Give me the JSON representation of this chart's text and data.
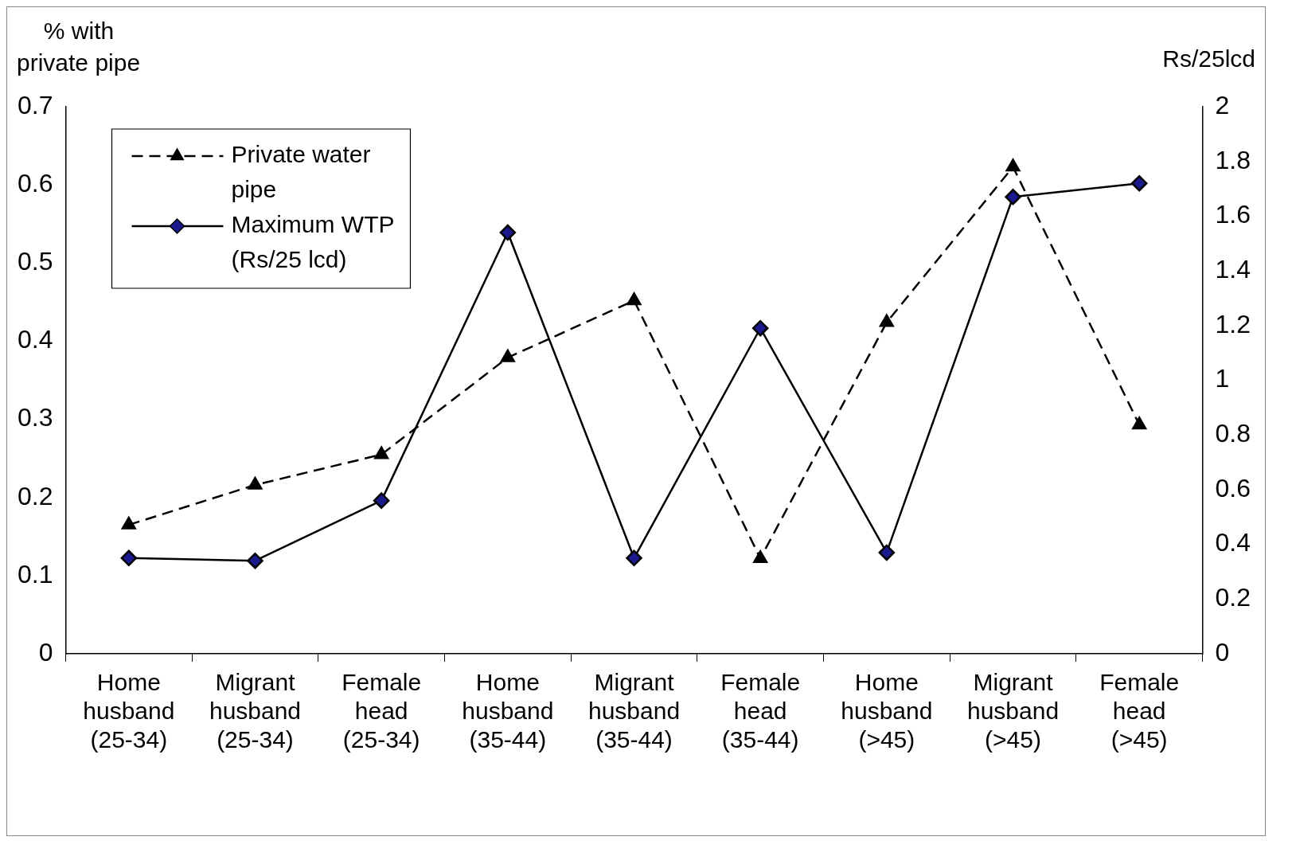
{
  "chart_data": {
    "type": "line",
    "ylabel": "% with private pipe",
    "y2label": "Rs/25lcd",
    "categories": [
      "Home husband (25-34)",
      "Migrant husband (25-34)",
      "Female head (25-34)",
      "Home husband (35-44)",
      "Migrant husband (35-44)",
      "Female head (35-44)",
      "Home husband (>45)",
      "Migrant husband (>45)",
      "Female head (>45)"
    ],
    "series": [
      {
        "name": "Private water pipe",
        "color": "#000000",
        "marker": "triangle",
        "line_style": "dashed",
        "axis": "y",
        "values": [
          0.165,
          0.216,
          0.255,
          0.379,
          0.452,
          0.122,
          0.424,
          0.623,
          0.293
        ]
      },
      {
        "name": "Maximum WTP (Rs/25 lcd)",
        "color": "#000000",
        "marker": "diamond",
        "line_style": "solid",
        "axis": "y2",
        "values": [
          0.35,
          0.34,
          0.56,
          1.54,
          0.35,
          1.19,
          0.37,
          1.67,
          1.72
        ]
      }
    ],
    "ylim": [
      0,
      0.7
    ],
    "yticks": [
      0,
      0.1,
      0.2,
      0.3,
      0.4,
      0.5,
      0.6,
      0.7
    ],
    "y2lim": [
      0,
      2
    ],
    "y2ticks": [
      0,
      0.2,
      0.4,
      0.6,
      0.8,
      1,
      1.2,
      1.4,
      1.6,
      1.8,
      2
    ],
    "grid": false,
    "legend": "top left"
  }
}
